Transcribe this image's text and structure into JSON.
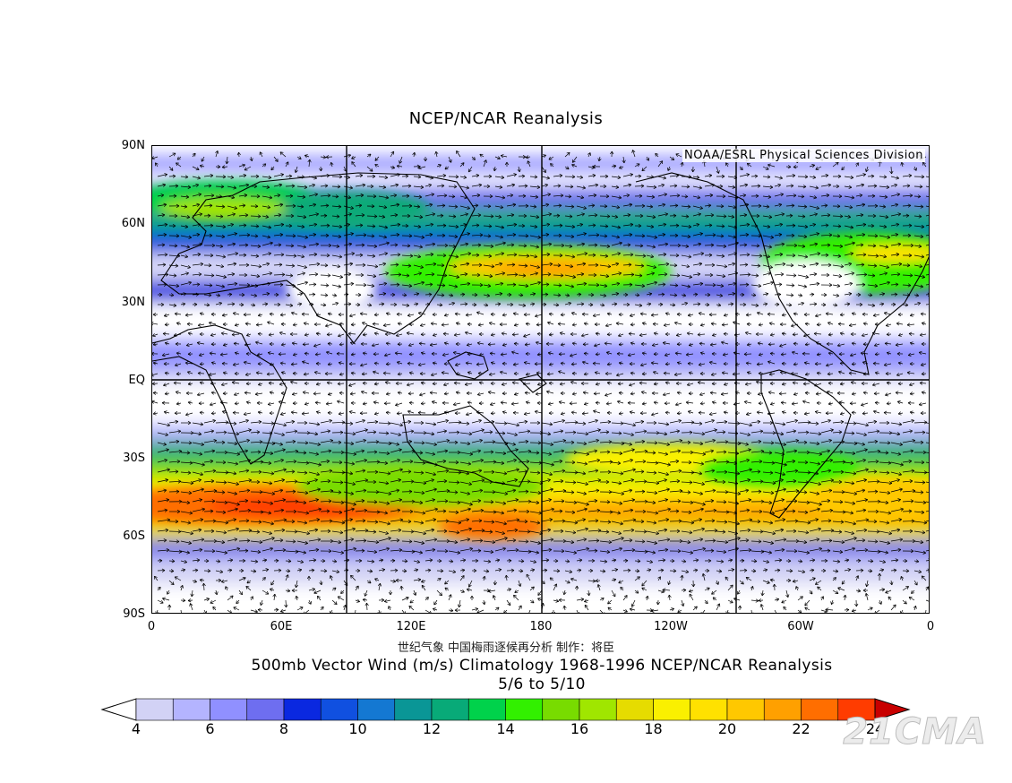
{
  "header": {
    "title": "NCEP/NCAR Reanalysis"
  },
  "map": {
    "credit": "NOAA/ESRL Physical Sciences Division",
    "lat_labels": [
      "90N",
      "60N",
      "30N",
      "EQ",
      "30S",
      "60S",
      "90S"
    ],
    "lon_labels": [
      "0",
      "60E",
      "120E",
      "180",
      "120W",
      "60W",
      "0"
    ]
  },
  "footer": {
    "chinese_note": "世纪气象  中国梅雨逐候再分析  制作：将臣",
    "subtitle": "500mb Vector Wind (m/s) Climatology 1968-1996 NCEP/NCAR Reanalysis",
    "dates": "5/6  to 5/10"
  },
  "colorbar": {
    "labels": [
      "4",
      "6",
      "8",
      "10",
      "12",
      "14",
      "16",
      "18",
      "20",
      "22",
      "24"
    ],
    "colors": [
      "#d2d2f5",
      "#b4b4ff",
      "#9090ff",
      "#6e6ef0",
      "#0a28e0",
      "#1050e0",
      "#1478d2",
      "#0a9696",
      "#08aa78",
      "#00d24b",
      "#32f000",
      "#78dc00",
      "#a0e600",
      "#e6dc00",
      "#faf000",
      "#ffe100",
      "#ffc800",
      "#ffa000",
      "#ff6e00",
      "#ff3c00"
    ],
    "end_low": "#ffffff",
    "end_high": "#c80000"
  },
  "watermark": "21CMA"
}
